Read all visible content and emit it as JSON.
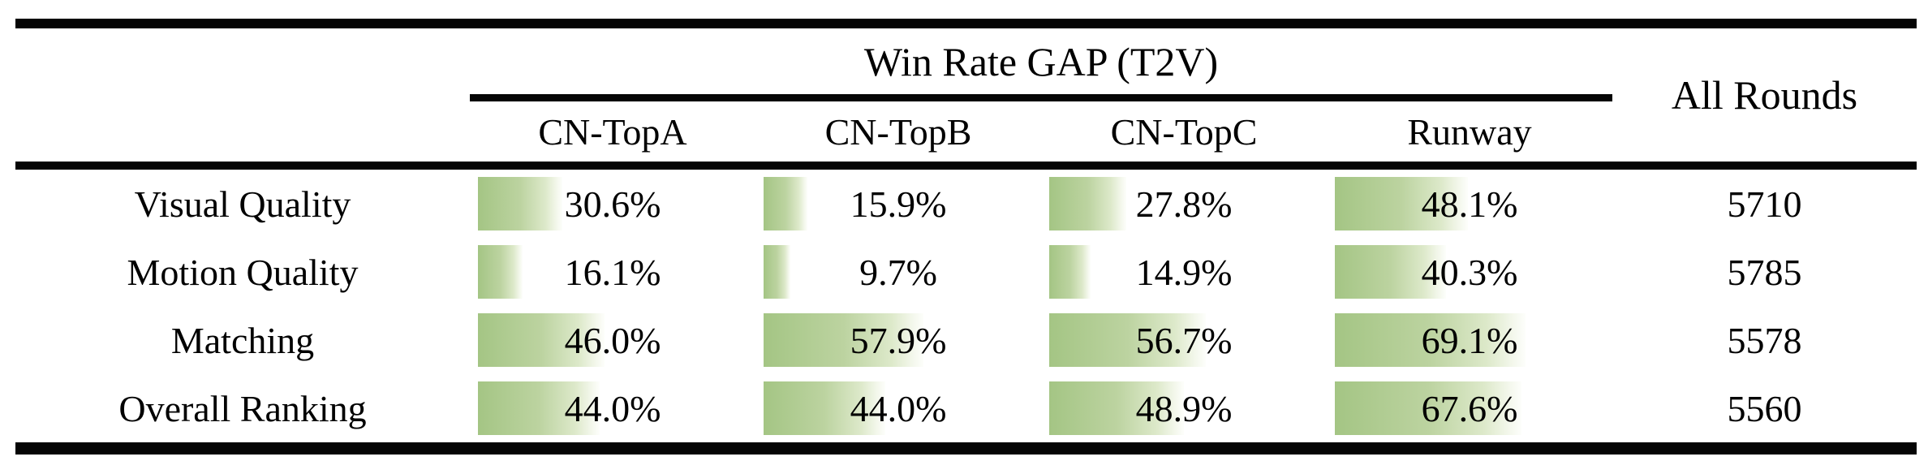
{
  "table": {
    "group_header": "Win Rate GAP (T2V)",
    "rounds_header": "All Rounds",
    "model_columns": [
      "CN-TopA",
      "CN-TopB",
      "CN-TopC",
      "Runway"
    ],
    "rows": [
      {
        "label": "Visual Quality",
        "cells": [
          {
            "value": 30.6,
            "display": "30.6%"
          },
          {
            "value": 15.9,
            "display": "15.9%"
          },
          {
            "value": 27.8,
            "display": "27.8%"
          },
          {
            "value": 48.1,
            "display": "48.1%"
          }
        ],
        "all_rounds": "5710"
      },
      {
        "label": "Motion Quality",
        "cells": [
          {
            "value": 16.1,
            "display": "16.1%"
          },
          {
            "value": 9.7,
            "display": "9.7%"
          },
          {
            "value": 14.9,
            "display": "14.9%"
          },
          {
            "value": 40.3,
            "display": "40.3%"
          }
        ],
        "all_rounds": "5785"
      },
      {
        "label": "Matching",
        "cells": [
          {
            "value": 46.0,
            "display": "46.0%"
          },
          {
            "value": 57.9,
            "display": "57.9%"
          },
          {
            "value": 56.7,
            "display": "56.7%"
          },
          {
            "value": 69.1,
            "display": "69.1%"
          }
        ],
        "all_rounds": "5578"
      },
      {
        "label": "Overall Ranking",
        "cells": [
          {
            "value": 44.0,
            "display": "44.0%"
          },
          {
            "value": 44.0,
            "display": "44.0%"
          },
          {
            "value": 48.9,
            "display": "48.9%"
          },
          {
            "value": 67.6,
            "display": "67.6%"
          }
        ],
        "all_rounds": "5560"
      }
    ],
    "colors": {
      "bar_green_start": "#a4c584",
      "bar_green_end": "#fdfefb",
      "rule_black": "#050505"
    }
  }
}
